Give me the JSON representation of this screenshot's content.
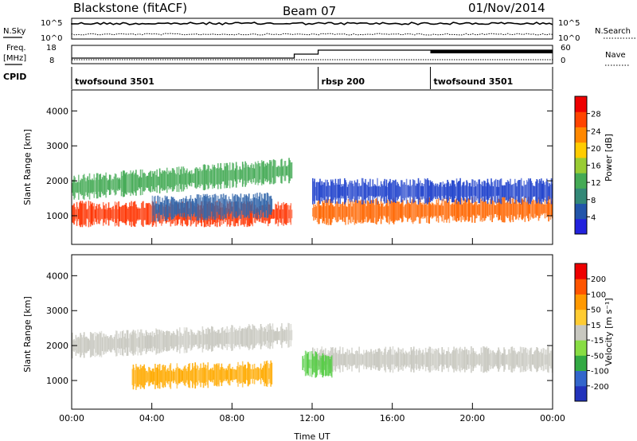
{
  "header": {
    "station": "Blackstone (fitACF)",
    "beam": "Beam 07",
    "date": "01/Nov/2014"
  },
  "panels": {
    "nsky_label": "N.Sky",
    "nsky_ticks": [
      "10^5",
      "10^0"
    ],
    "nsearch_label": "N.Search",
    "nsearch_ticks": [
      "10^5",
      "10^0"
    ],
    "freq_label": "Freq.",
    "freq_unit": "[MHz]",
    "freq_ticks": [
      "18",
      "8"
    ],
    "nave_label": "Nave",
    "nave_ticks": [
      "60",
      "0"
    ],
    "cpid_label": "CPID"
  },
  "cpid_segments": [
    {
      "name": "twofsound 3501",
      "start_h": 0
    },
    {
      "name": "rbsp 200",
      "start_h": 12.3
    },
    {
      "name": "twofsound 3501",
      "start_h": 17.9
    }
  ],
  "colorbars": {
    "power": {
      "label": "Power [dB]",
      "ticks": [
        "28",
        "24",
        "20",
        "16",
        "12",
        "8",
        "4"
      ],
      "colors": [
        "#2222dd",
        "#2255aa",
        "#338877",
        "#44aa55",
        "#99cc33",
        "#ffcc00",
        "#ff8800",
        "#ff4400",
        "#ee0000"
      ]
    },
    "velocity": {
      "label": "Velocity [m s⁻¹]",
      "ticks": [
        "200",
        "100",
        "50",
        "15",
        "-15",
        "-50",
        "-100",
        "-200"
      ],
      "colors": [
        "#2233bb",
        "#3366cc",
        "#33aa44",
        "#88dd44",
        "#c8c8c0",
        "#ffcc33",
        "#ff9900",
        "#ff5500",
        "#ee0000"
      ]
    }
  },
  "chart_data": [
    {
      "type": "heatmap",
      "name": "power",
      "xlabel": "",
      "ylabel": "Slant Range [km]",
      "xlim": [
        0,
        24
      ],
      "ylim": [
        180,
        4600
      ],
      "yticks": [
        1000,
        2000,
        3000,
        4000
      ],
      "xticks": [
        "00:00",
        "04:00",
        "08:00",
        "12:00",
        "16:00",
        "20:00",
        "00:00"
      ],
      "bands": [
        {
          "t0": 0,
          "t1": 11,
          "center_start": 1050,
          "center_end": 1050,
          "color": "#ff3300"
        },
        {
          "t0": 0,
          "t1": 11,
          "center_start": 1800,
          "center_end": 2300,
          "color": "#44aa55"
        },
        {
          "t0": 12,
          "t1": 24,
          "center_start": 1100,
          "center_end": 1200,
          "color": "#ff6600"
        },
        {
          "t0": 12,
          "t1": 24,
          "center_start": 1700,
          "center_end": 1700,
          "color": "#2244cc"
        },
        {
          "t0": 4,
          "t1": 10,
          "center_start": 1200,
          "center_end": 1300,
          "color": "#3366aa"
        }
      ]
    },
    {
      "type": "heatmap",
      "name": "velocity",
      "xlabel": "Time UT",
      "ylabel": "Slant Range [km]",
      "xlim": [
        0,
        24
      ],
      "ylim": [
        180,
        4600
      ],
      "yticks": [
        1000,
        2000,
        3000,
        4000
      ],
      "xticks": [
        "00:00",
        "04:00",
        "08:00",
        "12:00",
        "16:00",
        "20:00",
        "00:00"
      ],
      "bands": [
        {
          "t0": 0,
          "t1": 11,
          "center_start": 2000,
          "center_end": 2300,
          "color": "#c8c8c0"
        },
        {
          "t0": 12,
          "t1": 24,
          "center_start": 1600,
          "center_end": 1600,
          "color": "#c8c8c0"
        },
        {
          "t0": 3,
          "t1": 10,
          "center_start": 1100,
          "center_end": 1200,
          "color": "#ffaa00"
        },
        {
          "t0": 11.5,
          "t1": 13,
          "center_start": 1500,
          "center_end": 1400,
          "color": "#55cc44"
        }
      ]
    }
  ]
}
